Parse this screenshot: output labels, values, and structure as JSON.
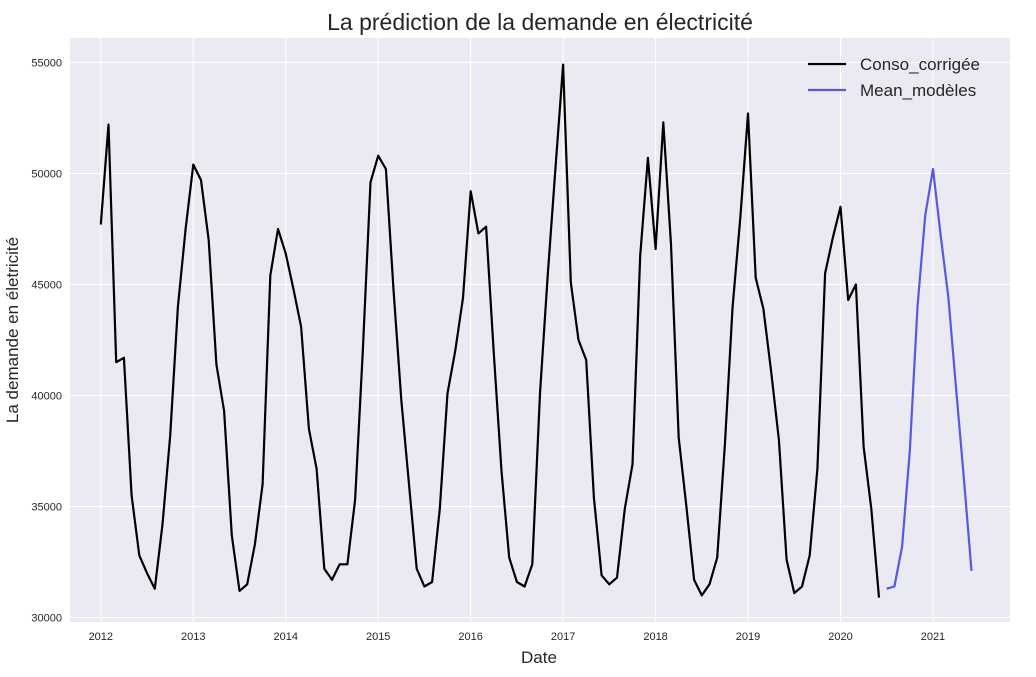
{
  "chart_data": {
    "type": "line",
    "title": "La prédiction de la demande en électricité",
    "xlabel": "Date",
    "ylabel": "La demande en életricité",
    "xlim": [
      "2011-09-01",
      "2021-11-01"
    ],
    "ylim": [
      29800,
      56100
    ],
    "x_ticks": [
      "2012",
      "2013",
      "2014",
      "2015",
      "2016",
      "2017",
      "2018",
      "2019",
      "2020",
      "2021"
    ],
    "y_ticks": [
      30000,
      35000,
      40000,
      45000,
      50000,
      55000
    ],
    "grid": true,
    "legend_position": "top-right",
    "series": [
      {
        "name": "Conso_corrigée",
        "color": "#000000",
        "x": [
          "2012-01",
          "2012-02",
          "2012-03",
          "2012-04",
          "2012-05",
          "2012-06",
          "2012-07",
          "2012-08",
          "2012-09",
          "2012-10",
          "2012-11",
          "2012-12",
          "2013-01",
          "2013-02",
          "2013-03",
          "2013-04",
          "2013-05",
          "2013-06",
          "2013-07",
          "2013-08",
          "2013-09",
          "2013-10",
          "2013-11",
          "2013-12",
          "2014-01",
          "2014-02",
          "2014-03",
          "2014-04",
          "2014-05",
          "2014-06",
          "2014-07",
          "2014-08",
          "2014-09",
          "2014-10",
          "2014-11",
          "2014-12",
          "2015-01",
          "2015-02",
          "2015-03",
          "2015-04",
          "2015-05",
          "2015-06",
          "2015-07",
          "2015-08",
          "2015-09",
          "2015-10",
          "2015-11",
          "2015-12",
          "2016-01",
          "2016-02",
          "2016-03",
          "2016-04",
          "2016-05",
          "2016-06",
          "2016-07",
          "2016-08",
          "2016-09",
          "2016-10",
          "2016-11",
          "2016-12",
          "2017-01",
          "2017-02",
          "2017-03",
          "2017-04",
          "2017-05",
          "2017-06",
          "2017-07",
          "2017-08",
          "2017-09",
          "2017-10",
          "2017-11",
          "2017-12",
          "2018-01",
          "2018-02",
          "2018-03",
          "2018-04",
          "2018-05",
          "2018-06",
          "2018-07",
          "2018-08",
          "2018-09",
          "2018-10",
          "2018-11",
          "2018-12",
          "2019-01",
          "2019-02",
          "2019-03",
          "2019-04",
          "2019-05",
          "2019-06",
          "2019-07",
          "2019-08",
          "2019-09",
          "2019-10",
          "2019-11",
          "2019-12",
          "2020-01",
          "2020-02",
          "2020-03",
          "2020-04",
          "2020-05",
          "2020-06"
        ],
        "values": [
          47700,
          52200,
          41500,
          41700,
          35500,
          32800,
          32000,
          31300,
          34200,
          38200,
          44000,
          47500,
          50400,
          49700,
          47000,
          41400,
          39300,
          33700,
          31200,
          31500,
          33300,
          36000,
          45400,
          47500,
          46400,
          44800,
          43100,
          38500,
          36700,
          32200,
          31700,
          32400,
          32400,
          35300,
          42000,
          49600,
          50800,
          50200,
          44700,
          39800,
          36000,
          32200,
          31400,
          31600,
          34900,
          40100,
          42000,
          44400,
          49200,
          47300,
          47600,
          41900,
          36600,
          32700,
          31600,
          31400,
          32400,
          40100,
          45400,
          50200,
          54900,
          45100,
          42500,
          41600,
          35400,
          31900,
          31500,
          31800,
          34900,
          36900,
          46300,
          50700,
          46600,
          52300,
          46800,
          38100,
          35000,
          31700,
          31000,
          31500,
          32700,
          37800,
          44000,
          48000,
          52700,
          45300,
          43900,
          41100,
          38000,
          32600,
          31100,
          31400,
          32800,
          36700,
          45500,
          47100,
          48500,
          44300,
          45000,
          37700,
          34900,
          30900
        ]
      },
      {
        "name": "Mean_modèles",
        "color": "#5858e0",
        "x": [
          "2020-07",
          "2020-08",
          "2020-09",
          "2020-10",
          "2020-11",
          "2020-12",
          "2021-01",
          "2021-02",
          "2021-03",
          "2021-04",
          "2021-05",
          "2021-06"
        ],
        "values": [
          31300,
          31400,
          33200,
          37500,
          44000,
          48100,
          50200,
          47200,
          44400,
          40300,
          36300,
          32100
        ]
      }
    ]
  }
}
